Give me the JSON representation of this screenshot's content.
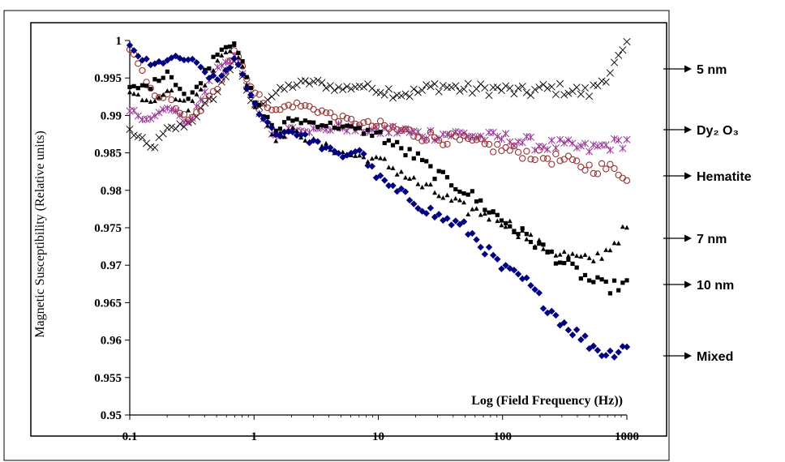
{
  "chart_data": {
    "type": "scatter",
    "xlabel": "Log (Field Frequency (Hz))",
    "ylabel": "Magnetic Susceptibility (Relative units)",
    "xscale": "log",
    "xlim": [
      0.1,
      1000
    ],
    "ylim": [
      0.95,
      1.0
    ],
    "grid": false,
    "legend_placement": "right, outside plot with arrows",
    "x_tick_labels": [
      "0.1",
      "1",
      "10",
      "100",
      "1000"
    ],
    "y_tick_labels": [
      "0.95",
      "0.955",
      "0.96",
      "0.965",
      "0.97",
      "0.975",
      "0.98",
      "0.985",
      "0.99",
      "0.995",
      "1"
    ],
    "x": [
      0.1,
      0.15,
      0.2,
      0.3,
      0.5,
      0.7,
      1,
      1.5,
      2,
      3,
      5,
      7,
      10,
      15,
      20,
      30,
      50,
      70,
      100,
      150,
      200,
      300,
      500,
      700,
      1000
    ],
    "series": [
      {
        "name": "5 nm",
        "marker": "x",
        "color": "#000000",
        "values": [
          0.988,
          0.9855,
          0.988,
          0.989,
          0.993,
          0.9975,
          0.991,
          0.993,
          0.994,
          0.9945,
          0.9935,
          0.994,
          0.9935,
          0.993,
          0.993,
          0.994,
          0.9935,
          0.9935,
          0.9935,
          0.993,
          0.9935,
          0.9935,
          0.993,
          0.9955,
          0.999
        ]
      },
      {
        "name": "Dy₂ O₃",
        "marker": "asterisk",
        "color": "#993399",
        "values": [
          0.9905,
          0.9895,
          0.991,
          0.989,
          0.9965,
          0.998,
          0.9915,
          0.987,
          0.9885,
          0.988,
          0.9885,
          0.988,
          0.988,
          0.988,
          0.9875,
          0.9875,
          0.9875,
          0.987,
          0.987,
          0.9865,
          0.986,
          0.986,
          0.9855,
          0.986,
          0.9865
        ]
      },
      {
        "name": "Hematite",
        "marker": "circle",
        "color": "#993333",
        "values": [
          0.999,
          0.993,
          0.9925,
          0.989,
          0.9935,
          0.999,
          0.993,
          0.9905,
          0.9915,
          0.991,
          0.9895,
          0.989,
          0.9885,
          0.988,
          0.9875,
          0.987,
          0.9865,
          0.986,
          0.9855,
          0.985,
          0.9845,
          0.984,
          0.983,
          0.983,
          0.982
        ]
      },
      {
        "name": "7 nm",
        "marker": "triangle",
        "color": "#000000",
        "values": [
          0.993,
          0.992,
          0.9935,
          0.991,
          0.997,
          0.9995,
          0.9915,
          0.987,
          0.988,
          0.9865,
          0.985,
          0.9845,
          0.984,
          0.9825,
          0.981,
          0.9795,
          0.9775,
          0.977,
          0.976,
          0.974,
          0.9725,
          0.9715,
          0.9705,
          0.972,
          0.975
        ]
      },
      {
        "name": "10 nm",
        "marker": "square",
        "color": "#000000",
        "values": [
          0.9935,
          0.994,
          0.996,
          0.992,
          0.9985,
          1.0,
          0.992,
          0.988,
          0.9895,
          0.989,
          0.9885,
          0.988,
          0.9875,
          0.9855,
          0.9845,
          0.982,
          0.98,
          0.978,
          0.976,
          0.974,
          0.9725,
          0.9705,
          0.968,
          0.967,
          0.9675
        ]
      },
      {
        "name": "Mixed",
        "marker": "diamond",
        "color": "#000080",
        "values": [
          0.999,
          0.9965,
          0.9975,
          0.9975,
          0.9945,
          0.9975,
          0.9915,
          0.9875,
          0.988,
          0.9865,
          0.9845,
          0.9855,
          0.9815,
          0.9795,
          0.9785,
          0.9765,
          0.975,
          0.9725,
          0.9695,
          0.968,
          0.9655,
          0.9625,
          0.9595,
          0.958,
          0.9595
        ]
      }
    ]
  },
  "legend_items": [
    {
      "label": "5 nm"
    },
    {
      "label": "Dy₂ O₃"
    },
    {
      "label": "Hematite"
    },
    {
      "label": "7 nm"
    },
    {
      "label": "10 nm"
    },
    {
      "label": "Mixed"
    }
  ]
}
